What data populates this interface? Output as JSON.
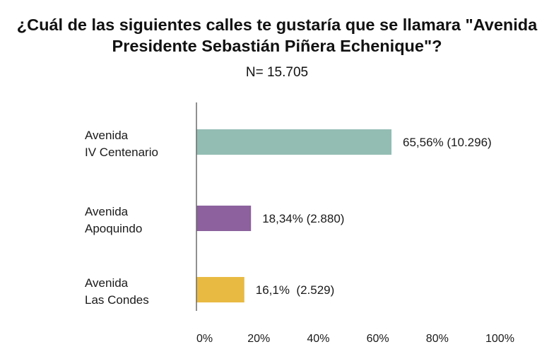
{
  "chart_data": {
    "type": "bar",
    "orientation": "horizontal",
    "title_line1": "¿Cuál de las siguientes calles te gustaría que se llamara \"Avenida",
    "title_line2": "Presidente Sebastián Piñera Echenique\"?",
    "subtitle": "N= 15.705",
    "categories": [
      [
        "Avenida",
        "IV Centenario"
      ],
      [
        "Avenida",
        "Apoquindo"
      ],
      [
        "Avenida",
        "Las Condes"
      ]
    ],
    "values": [
      65.56,
      18.34,
      16.1
    ],
    "counts": [
      10296,
      2880,
      2529
    ],
    "data_labels": [
      "65,56% (10.296)",
      "18,34% (2.880)",
      "16,1%  (2.529)"
    ],
    "colors": [
      "#93bdb3",
      "#8c619d",
      "#e9ba42"
    ],
    "xlim": [
      0,
      100
    ],
    "xticks": [
      0,
      20,
      40,
      60,
      80,
      100
    ],
    "xtick_labels": [
      "0%",
      "20%",
      "40%",
      "60%",
      "80%",
      "100%"
    ],
    "xlabel": "",
    "ylabel": "",
    "grid": false,
    "legend": "none"
  }
}
